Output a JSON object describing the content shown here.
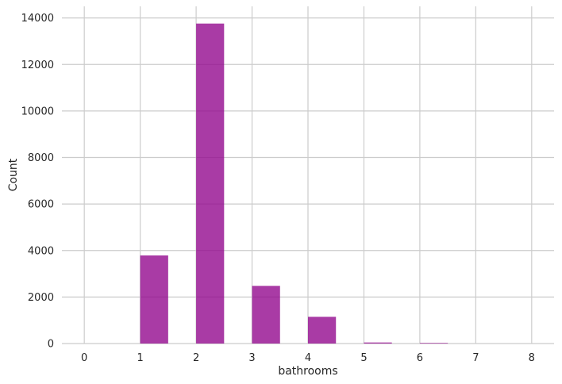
{
  "chart_data": {
    "type": "bar",
    "title": "",
    "xlabel": "bathrooms",
    "ylabel": "Count",
    "xlim": [
      -0.4,
      8.4
    ],
    "ylim": [
      0,
      14500
    ],
    "xticks": [
      0,
      1,
      2,
      3,
      4,
      5,
      6,
      7,
      8
    ],
    "yticks": [
      0,
      2000,
      4000,
      6000,
      8000,
      10000,
      12000,
      14000
    ],
    "grid": true,
    "bar_color": "#940a8f",
    "bar_opacity": 0.8,
    "grid_color": "#cccccc",
    "bins": [
      {
        "start": 1.0,
        "end": 1.5,
        "count": 3790
      },
      {
        "start": 2.0,
        "end": 2.5,
        "count": 13760
      },
      {
        "start": 3.0,
        "end": 3.5,
        "count": 2480
      },
      {
        "start": 4.0,
        "end": 4.5,
        "count": 1150
      },
      {
        "start": 5.0,
        "end": 5.5,
        "count": 45
      },
      {
        "start": 6.0,
        "end": 6.5,
        "count": 25
      }
    ]
  }
}
